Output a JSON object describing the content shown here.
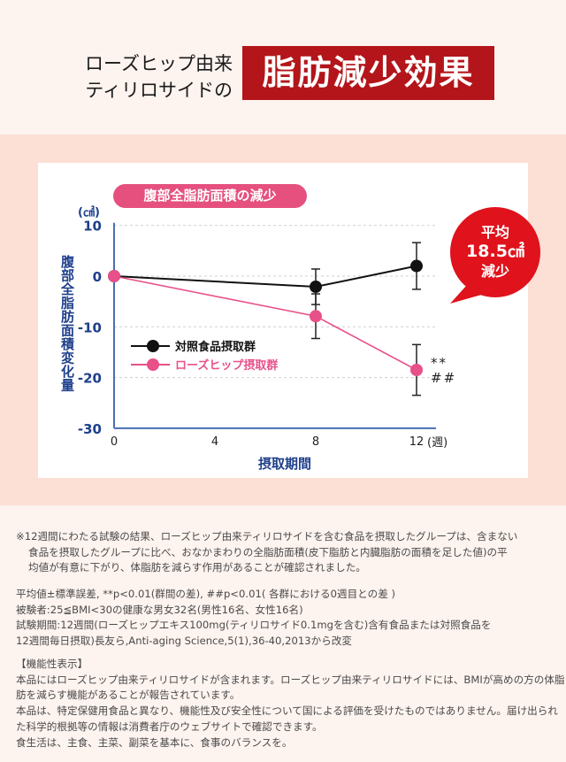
{
  "header": {
    "subtitle_line1": "ローズヒップ由来",
    "subtitle_line2": "ティリロサイドの",
    "title": "脂肪減少効果",
    "title_bg": "#b3151a"
  },
  "chart": {
    "pill_title": "腹部全脂肪面積の減少",
    "unit": "(㎠)",
    "y_axis_label": "腹部全脂肪面積変化量",
    "x_axis_label": "摂取期間",
    "x_unit": "(週)",
    "callout": {
      "line1": "平均",
      "line2": "18.5㎠",
      "line3": "減少",
      "color": "#e0121c"
    }
  },
  "chart_data": {
    "type": "line",
    "title": "腹部全脂肪面積の減少",
    "xlabel": "摂取期間 (週)",
    "ylabel": "腹部全脂肪面積変化量 (㎠)",
    "x": [
      0,
      8,
      12
    ],
    "x_ticks": [
      0,
      4,
      8,
      12
    ],
    "y_ticks": [
      10,
      0,
      -10,
      -20,
      -30
    ],
    "ylim": [
      -30,
      10
    ],
    "xlim": [
      0,
      12.8
    ],
    "grid": true,
    "legend_position": "inside-left",
    "series": [
      {
        "name": "対照食品摂取群",
        "color": "#111111",
        "values": [
          0,
          -2.1,
          2.0
        ],
        "errors": [
          0,
          3.5,
          4.6
        ]
      },
      {
        "name": "ローズヒップ摂取群",
        "color": "#e8508a",
        "values": [
          0,
          -7.9,
          -18.5
        ],
        "errors": [
          0,
          4.4,
          5.0
        ]
      }
    ],
    "annotations": [
      {
        "x": 12,
        "text": "**"
      },
      {
        "x": 12,
        "text": "##"
      }
    ],
    "callout": "平均 18.5㎠ 減少"
  },
  "notes": {
    "block1": [
      "※12週間にわたる試験の結果、ローズヒップ由来ティリロサイドを含む食品を摂取したグループは、含まない",
      "食品を摂取したグループに比べ、おなかまわりの全脂肪面積(皮下脂肪と内臓脂肪の面積を足した値)の平",
      "均値が有意に下がり、体脂肪を減らす作用があることが確認されました。"
    ],
    "block2": [
      "平均値±標準誤差, **p<0.01(群間の差), ##p<0.01( 各群における0週目との差 )",
      "被験者:25≦BMI<30の健康な男女32名(男性16名、女性16名)",
      "試験期間:12週間(ローズヒップエキス100mg(ティリロサイド0.1mgを含む)含有食品または対照食品を",
      "12週間毎日摂取)長友ら,Anti-aging Science,5(1),36-40,2013から改変"
    ],
    "block3": [
      "【機能性表示】",
      "本品にはローズヒップ由来ティリロサイドが含まれます。ローズヒップ由来ティリロサイドには、BMIが高めの方の体脂",
      "肪を減らす機能があることが報告されています。",
      "本品は、特定保健用食品と異なり、機能性及び安全性について国による評価を受けたものではありません。届け出られ",
      "た科学的根拠等の情報は消費者庁のウェブサイトで確認できます。",
      "食生活は、主食、主菜、副菜を基本に、食事のバランスを。"
    ]
  }
}
